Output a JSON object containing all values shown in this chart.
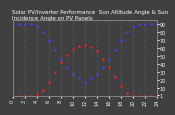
{
  "title": "Solar PV/Inverter Performance  Sun Altitude Angle & Sun Incidence Angle on PV Panels",
  "bg_color": "#404040",
  "grid_color": "#808080",
  "blue_color": "#4444ff",
  "red_color": "#ff2222",
  "yticks_right": [
    90,
    80,
    70,
    60,
    50,
    40,
    30,
    20,
    10,
    1
  ],
  "ylim": [
    0,
    95
  ],
  "xlim": [
    0,
    24
  ],
  "xticks": [
    0,
    2,
    4,
    6,
    8,
    10,
    12,
    14,
    16,
    18,
    20,
    22,
    24
  ],
  "sun_altitude_x": [
    0,
    1,
    2,
    3,
    4,
    5,
    6,
    7,
    8,
    9,
    10,
    11,
    12,
    13,
    14,
    15,
    16,
    17,
    18,
    19,
    20,
    21,
    22,
    23,
    24
  ],
  "sun_altitude_y": [
    0,
    0,
    0,
    0,
    2,
    8,
    18,
    30,
    42,
    52,
    59,
    63,
    64,
    62,
    56,
    47,
    36,
    24,
    12,
    4,
    0,
    0,
    0,
    0,
    0
  ],
  "incidence_x": [
    0,
    1,
    2,
    3,
    4,
    5,
    6,
    7,
    8,
    9,
    10,
    11,
    12,
    13,
    14,
    15,
    16,
    17,
    18,
    19,
    20,
    21,
    22,
    23,
    24
  ],
  "incidence_y": [
    90,
    90,
    90,
    90,
    88,
    80,
    70,
    58,
    46,
    36,
    28,
    22,
    18,
    22,
    28,
    36,
    46,
    58,
    70,
    80,
    88,
    90,
    90,
    90,
    90
  ],
  "title_fontsize": 4.0,
  "tick_fontsize": 3.5,
  "marker_size": 1.5
}
